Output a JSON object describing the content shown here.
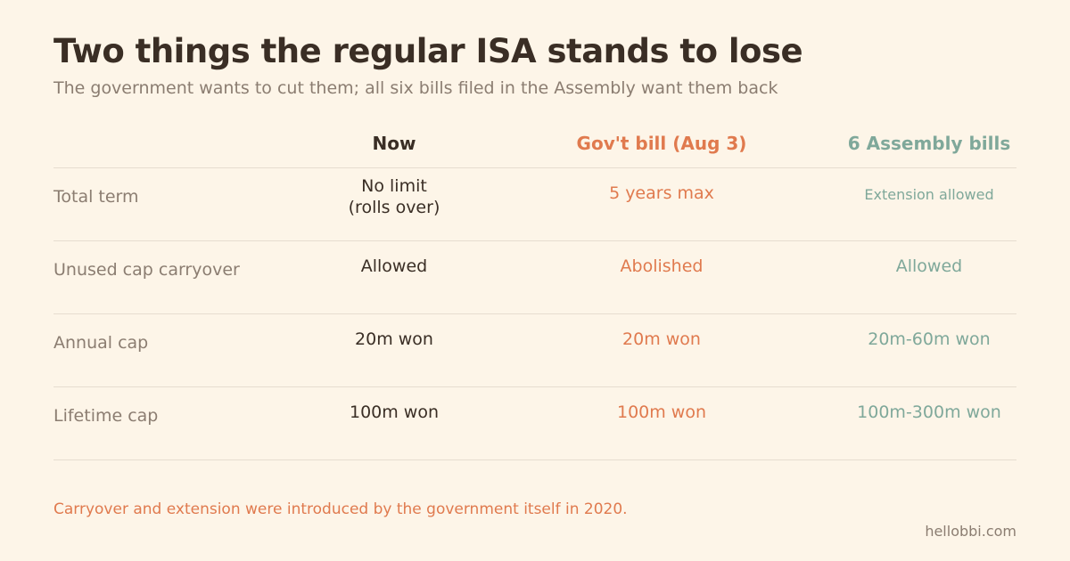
{
  "chart_data": {
    "type": "table",
    "title": "Two things the regular ISA stands to lose",
    "subtitle": "The government wants to cut them; all six bills filed in the Assembly want them back",
    "columns": [
      "Now",
      "Gov't bill (Aug 3)",
      "6 Assembly bills"
    ],
    "rows": [
      {
        "label": "Total term",
        "values": [
          "No limit\n(rolls over)",
          "5 years max",
          "Extension allowed"
        ]
      },
      {
        "label": "Unused cap carryover",
        "values": [
          "Allowed",
          "Abolished",
          "Allowed"
        ]
      },
      {
        "label": "Annual cap",
        "values": [
          "20m won",
          "20m won",
          "20m-60m won"
        ]
      },
      {
        "label": "Lifetime cap",
        "values": [
          "100m won",
          "100m won",
          "100m-300m won"
        ]
      }
    ],
    "footnote": "Carryover and extension were introduced by the government itself in 2020.",
    "credit": "hellobbi.com"
  },
  "colors": {
    "background": "#fdf5e8",
    "title": "#3a2e25",
    "muted": "#8b7d71",
    "government": "#e07a4e",
    "assembly": "#7fa89a",
    "rule": "#e6ddd0"
  }
}
